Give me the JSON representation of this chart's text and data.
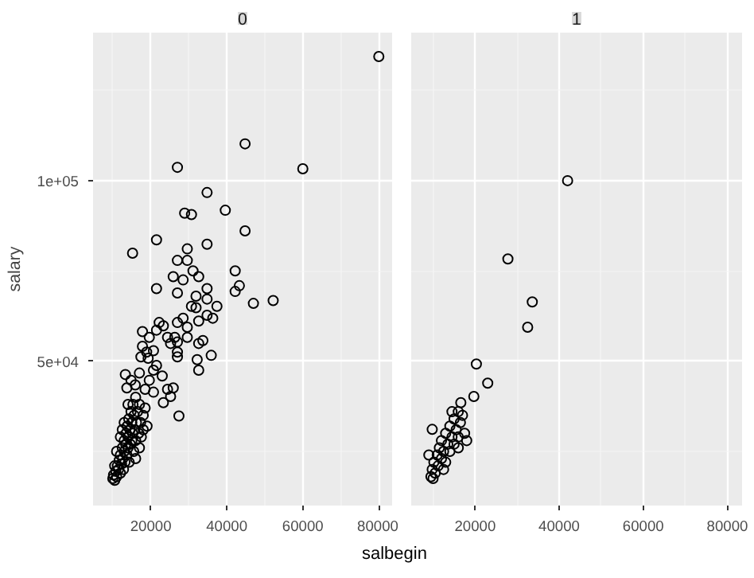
{
  "chart_data": [
    {
      "type": "scatter",
      "title": "0",
      "xlabel": "salbegin",
      "ylabel": "salary",
      "color": "#000000",
      "marker": "circle",
      "grid": true,
      "xlim": [
        4800,
        83500
      ],
      "ylim": [
        10000,
        141000
      ],
      "xticks": [
        20000,
        40000,
        60000,
        80000
      ],
      "yticks": [
        {
          "value": 50000,
          "label": "5e+04"
        },
        {
          "value": 100000,
          "label": "1e+05"
        }
      ],
      "x": [
        80000,
        44800,
        27000,
        60000,
        34800,
        28900,
        30700,
        39600,
        44800,
        21500,
        34800,
        15200,
        29600,
        27000,
        29600,
        31100,
        42200,
        32600,
        25900,
        28500,
        43300,
        42200,
        21500,
        27000,
        34800,
        31900,
        34800,
        30700,
        31900,
        37400,
        47000,
        52200,
        28500,
        34800,
        36300,
        32600,
        27000,
        22200,
        23300,
        29600,
        17800,
        21500,
        24400,
        26300,
        29600,
        32600,
        33700,
        25200,
        27000,
        19600,
        17800,
        20700,
        18900,
        27000,
        27000,
        35900,
        17400,
        19300,
        32200,
        32600,
        21500,
        20700,
        17000,
        23000,
        13300,
        14800,
        19600,
        15900,
        25900,
        24400,
        13700,
        18500,
        20700,
        23300,
        25200,
        27400,
        10000,
        10200,
        10500,
        10800,
        11000,
        11200,
        11500,
        11700,
        12000,
        12000,
        12300,
        12500,
        12600,
        12800,
        13000,
        13000,
        13200,
        13400,
        13500,
        13700,
        13800,
        14000,
        14000,
        14200,
        14300,
        14500,
        14600,
        14800,
        15000,
        15000,
        15200,
        15300,
        15500,
        15600,
        15800,
        16000,
        16000,
        16200,
        16500,
        16800,
        17000,
        17000,
        17300,
        17500,
        18000,
        18000,
        18500,
        19000,
        11000,
        12000,
        13000,
        10500,
        16000,
        14000,
        12500
      ],
      "values": [
        134400,
        110200,
        103700,
        103300,
        96700,
        91000,
        90600,
        91800,
        86100,
        83600,
        82400,
        79900,
        81100,
        77900,
        77900,
        75000,
        75000,
        73400,
        73400,
        72500,
        70900,
        69300,
        70100,
        68900,
        70100,
        68000,
        67200,
        65200,
        64800,
        65200,
        66000,
        66800,
        61900,
        62700,
        61900,
        61100,
        60700,
        60700,
        59800,
        59400,
        58200,
        58600,
        56600,
        56600,
        56600,
        54900,
        55700,
        54900,
        55300,
        56600,
        54100,
        52900,
        52500,
        52500,
        51200,
        51600,
        51200,
        50800,
        50400,
        47500,
        48800,
        47500,
        46700,
        45900,
        46300,
        44700,
        44700,
        43400,
        42600,
        42200,
        42600,
        42200,
        41400,
        38500,
        40200,
        34800,
        17500,
        18500,
        17000,
        19500,
        18000,
        21000,
        20000,
        22500,
        19000,
        24000,
        21500,
        26000,
        23000,
        20000,
        25000,
        28000,
        22000,
        27000,
        30000,
        24000,
        32000,
        26000,
        29000,
        34000,
        22000,
        31000,
        27000,
        36000,
        28000,
        33000,
        30000,
        38000,
        25000,
        35000,
        31000,
        28000,
        40000,
        33000,
        36000,
        30000,
        26000,
        38000,
        33000,
        29000,
        35000,
        31000,
        37000,
        32000,
        25000,
        29000,
        33000,
        21000,
        23000,
        38000,
        31000
      ]
    },
    {
      "type": "scatter",
      "title": "1",
      "color": "#000000",
      "marker": "circle",
      "grid": true,
      "tick_labels": "x",
      "xlim": [
        4800,
        83500
      ],
      "ylim": [
        10000,
        141000
      ],
      "xticks": [
        20000,
        40000,
        60000,
        80000
      ],
      "yticks": [
        50000,
        100000
      ],
      "x": [
        42000,
        27800,
        33600,
        32500,
        20300,
        23000,
        19700,
        16600,
        9800,
        9500,
        9800,
        10000,
        10200,
        10500,
        11000,
        11200,
        11500,
        12000,
        12000,
        12500,
        13000,
        13000,
        13500,
        14000,
        14000,
        14500,
        15000,
        15000,
        15500,
        16000,
        16000,
        16500,
        17500,
        18000,
        17000,
        9000,
        12500,
        14500,
        16000
      ],
      "values": [
        100000,
        78300,
        66400,
        59400,
        49200,
        43900,
        40200,
        38500,
        31100,
        18000,
        20000,
        17500,
        22000,
        19000,
        24000,
        21000,
        26000,
        23000,
        28000,
        25000,
        30000,
        22000,
        27000,
        32000,
        25000,
        29000,
        34000,
        27000,
        31000,
        36000,
        29000,
        33000,
        30000,
        28000,
        35000,
        24000,
        20000,
        36000,
        26000
      ]
    }
  ]
}
